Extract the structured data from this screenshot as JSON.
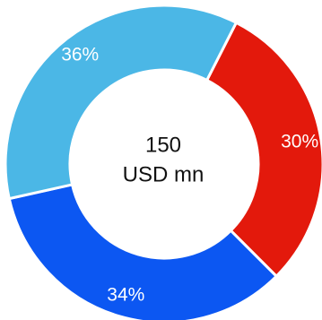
{
  "chart_data": {
    "type": "pie",
    "variant": "donut",
    "title": "",
    "center_label": {
      "value": "150",
      "unit": "USD mn"
    },
    "slices": [
      {
        "value": 30,
        "label": "30%",
        "color": "#e3190c"
      },
      {
        "value": 34,
        "label": "34%",
        "color": "#0c57f2"
      },
      {
        "value": 36,
        "label": "36%",
        "color": "#4bb7e6"
      }
    ],
    "start_angle_deg": -63,
    "direction": "clockwise",
    "legend": "none",
    "separator_color": "#ffffff"
  }
}
